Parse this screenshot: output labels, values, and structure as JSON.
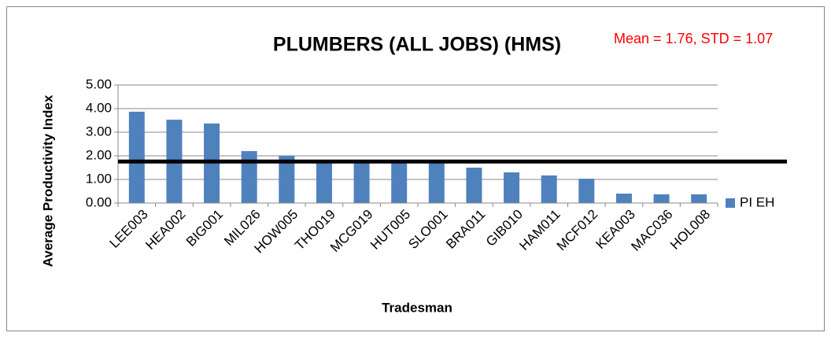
{
  "chart_data": {
    "type": "bar",
    "title": "PLUMBERS (ALL JOBS) (HMS)",
    "annotation": "Mean = 1.76, STD = 1.07",
    "mean": 1.76,
    "mean_color": "#000000",
    "annotation_color": "#ff0000",
    "x_label": "Tradesman",
    "y_label": "Average Productivity Index",
    "categories": [
      "LEE003",
      "HEA002",
      "BIG001",
      "MIL026",
      "HOW005",
      "THO019",
      "MCG019",
      "HUT005",
      "SLO001",
      "BRA011",
      "GIB010",
      "HAM011",
      "MCF012",
      "KEA003",
      "MAC036",
      "HOL008"
    ],
    "series": [
      {
        "name": "PI EH",
        "color": "#4f81bd",
        "values": [
          3.87,
          3.53,
          3.37,
          2.2,
          2.0,
          1.77,
          1.77,
          1.75,
          1.72,
          1.5,
          1.3,
          1.17,
          1.03,
          0.4,
          0.37,
          0.37
        ]
      }
    ],
    "ylim": [
      0,
      5
    ],
    "yticks": [
      {
        "value": 0,
        "label": "0.00"
      },
      {
        "value": 1,
        "label": "1.00"
      },
      {
        "value": 2,
        "label": "2.00"
      },
      {
        "value": 3,
        "label": "3.00"
      },
      {
        "value": 4,
        "label": "4.00"
      },
      {
        "value": 5,
        "label": "5.00"
      }
    ],
    "grid": true,
    "legend": "right"
  }
}
